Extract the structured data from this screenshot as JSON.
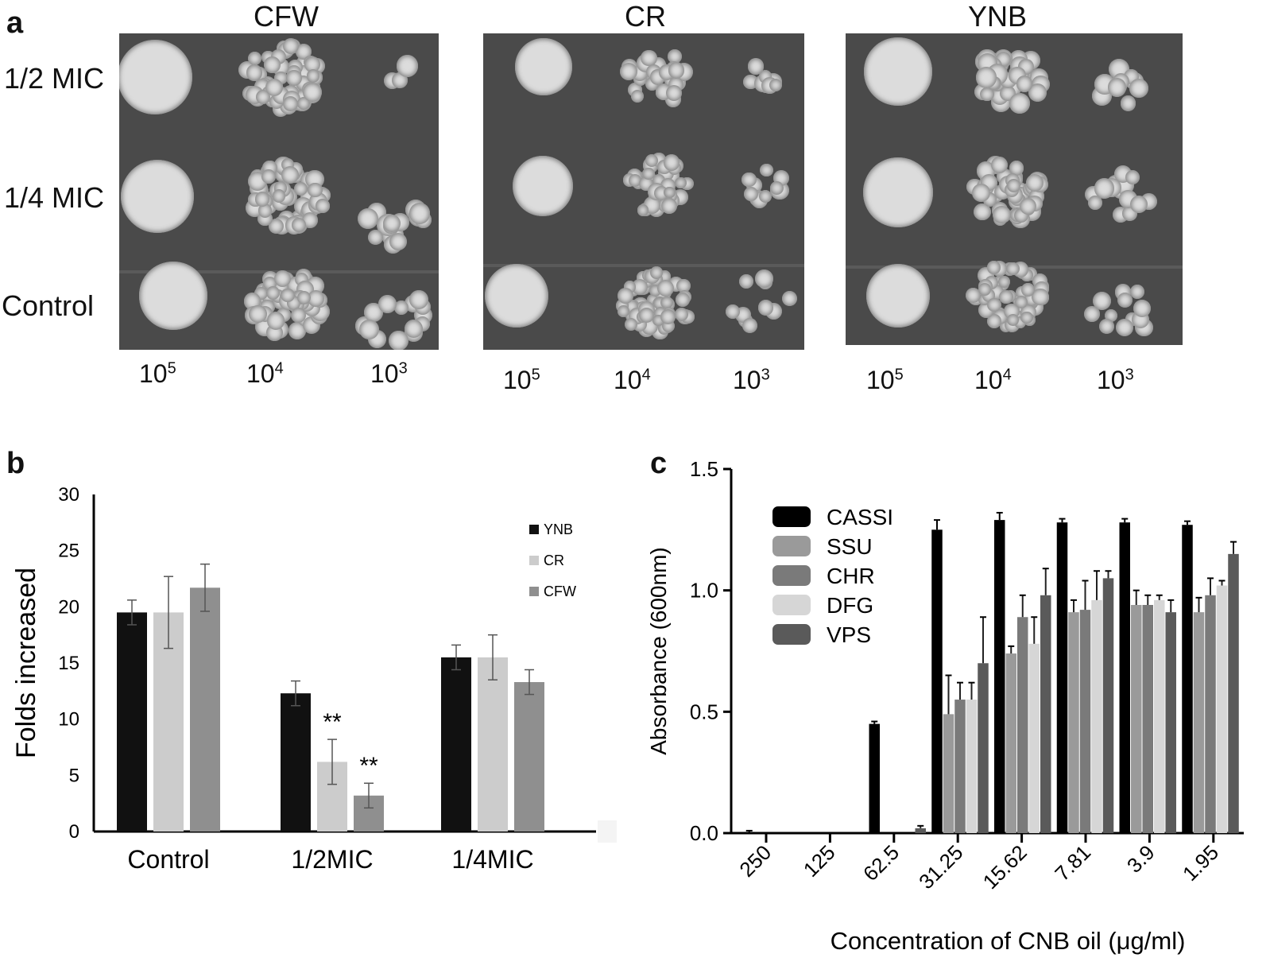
{
  "panel_a": {
    "letter": "a",
    "plates": [
      {
        "title": "CFW"
      },
      {
        "title": "CR"
      },
      {
        "title": "YNB"
      }
    ],
    "rows": [
      "1/2 MIC",
      "1/4 MIC",
      "Control"
    ],
    "dilutions": [
      {
        "base": "10",
        "exp": "5"
      },
      {
        "base": "10",
        "exp": "4"
      },
      {
        "base": "10",
        "exp": "3"
      }
    ],
    "colony_color": "#dcdcdc",
    "plate_color": "#4a4a4a"
  },
  "chart_data": [
    {
      "panel": "b",
      "type": "bar",
      "ylabel": "Folds increased",
      "xlabel": "",
      "ylim": [
        0,
        30
      ],
      "yticks": [
        0,
        5,
        10,
        15,
        20,
        25,
        30
      ],
      "categories": [
        "Control",
        "1/2MIC",
        "1/4MIC"
      ],
      "series": [
        {
          "name": "YNB",
          "color": "#111111",
          "values": [
            19.5,
            12.3,
            15.5
          ],
          "errors": [
            1.1,
            1.1,
            1.1
          ]
        },
        {
          "name": "CR",
          "color": "#cccccc",
          "values": [
            19.5,
            6.2,
            15.5
          ],
          "errors": [
            3.2,
            2.0,
            2.0
          ]
        },
        {
          "name": "CFW",
          "color": "#8f8f8f",
          "values": [
            21.7,
            3.2,
            13.3
          ],
          "errors": [
            2.1,
            1.1,
            1.1
          ]
        }
      ],
      "annotations": [
        {
          "text": "**",
          "category": "1/2MIC",
          "series": "CR"
        },
        {
          "text": "**",
          "category": "1/2MIC",
          "series": "CFW"
        }
      ],
      "legend_position": "top-right"
    },
    {
      "panel": "c",
      "type": "bar",
      "xlabel": "Concentration of CNB oil (μg/ml)",
      "ylabel": "Absorbance (600nm)",
      "ylim": [
        0,
        1.5
      ],
      "yticks": [
        "0.0",
        "0.5",
        "1.0",
        "1.5"
      ],
      "categories": [
        "250",
        "125",
        "62.5",
        "31.25",
        "15.62",
        "7.81",
        "3.9",
        "1.95"
      ],
      "series": [
        {
          "name": "CASSI",
          "color": "#000000",
          "values": [
            0.005,
            0,
            0.45,
            1.25,
            1.29,
            1.28,
            1.28,
            1.27
          ],
          "errors": [
            0.005,
            0,
            0.01,
            0.04,
            0.03,
            0.015,
            0.015,
            0.015
          ]
        },
        {
          "name": "SSU",
          "color": "#9a9a9a",
          "values": [
            0,
            0,
            0,
            0.49,
            0.74,
            0.91,
            0.94,
            0.91
          ],
          "errors": [
            0,
            0,
            0,
            0.16,
            0.03,
            0.05,
            0.06,
            0.06
          ]
        },
        {
          "name": "CHR",
          "color": "#7a7a7a",
          "values": [
            0,
            0,
            0,
            0.55,
            0.89,
            0.92,
            0.94,
            0.98
          ],
          "errors": [
            0,
            0,
            0,
            0.07,
            0.09,
            0.12,
            0.04,
            0.07
          ]
        },
        {
          "name": "DFG",
          "color": "#d6d6d6",
          "values": [
            0,
            0,
            0,
            0.55,
            0.78,
            0.96,
            0.96,
            1.02
          ],
          "errors": [
            0,
            0,
            0,
            0.07,
            0.11,
            0.12,
            0.02,
            0.02
          ]
        },
        {
          "name": "VPS",
          "color": "#5a5a5a",
          "values": [
            0,
            0,
            0.02,
            0.7,
            0.98,
            1.05,
            0.91,
            1.15
          ],
          "errors": [
            0,
            0,
            0.01,
            0.19,
            0.11,
            0.03,
            0.05,
            0.05
          ]
        }
      ],
      "legend_position": "top-left"
    }
  ]
}
